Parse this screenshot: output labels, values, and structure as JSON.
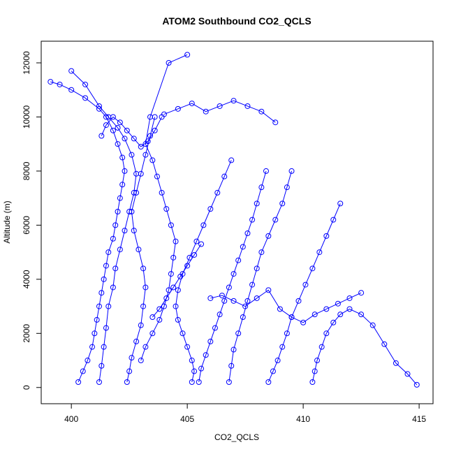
{
  "chart_data": {
    "type": "scatter",
    "title": "ATOM2 Southbound CO2_QCLS",
    "xlabel": "CO2_QCLS",
    "ylabel": "Altitude (m)",
    "xlim": [
      398.7,
      415.6
    ],
    "ylim": [
      -600,
      12800
    ],
    "x_ticks": [
      400,
      405,
      410,
      415
    ],
    "y_ticks": [
      0,
      2000,
      4000,
      6000,
      8000,
      10000,
      12000
    ],
    "grid": false,
    "legend": "none",
    "point_style": "open-circle",
    "connect_points": true,
    "color": "#0000ff",
    "series": [
      {
        "x": [
          400.3,
          400.5,
          400.7,
          400.9,
          401.0,
          401.1,
          401.2,
          401.3,
          401.4,
          401.5,
          401.6,
          401.8,
          401.9,
          402.0,
          402.1,
          402.2,
          402.3,
          402.2,
          402.0,
          401.8,
          401.5,
          401.2,
          400.6,
          400.0,
          399.5,
          399.1
        ],
        "y": [
          200,
          600,
          1000,
          1500,
          2000,
          2500,
          3000,
          3500,
          4000,
          4500,
          5000,
          5500,
          6000,
          6500,
          7000,
          7500,
          8000,
          8500,
          9000,
          9500,
          10000,
          10300,
          10700,
          11000,
          11200,
          11300
        ]
      },
      {
        "x": [
          401.2,
          401.3,
          401.4,
          401.5,
          401.6,
          401.8,
          401.9,
          402.1,
          402.3,
          402.5,
          402.7,
          402.8,
          402.6,
          402.3,
          402.0,
          401.6,
          401.2,
          400.6,
          400.0
        ],
        "y": [
          200,
          800,
          1500,
          2200,
          3000,
          3700,
          4400,
          5100,
          5800,
          6500,
          7200,
          7900,
          8600,
          9200,
          9600,
          10000,
          10400,
          11200,
          11700
        ]
      },
      {
        "x": [
          402.4,
          402.5,
          402.6,
          402.8,
          403.0,
          403.1,
          403.2,
          403.1,
          402.9,
          402.7,
          402.6,
          402.8,
          403.0,
          403.2,
          403.4,
          403.6
        ],
        "y": [
          200,
          600,
          1100,
          1700,
          2300,
          3000,
          3700,
          4400,
          5100,
          5800,
          6500,
          7200,
          7900,
          8600,
          9300,
          10000
        ]
      },
      {
        "x": [
          403.0,
          403.2,
          403.5,
          403.8,
          404.0,
          404.2,
          404.3,
          404.4,
          404.5,
          404.3,
          404.1,
          403.9,
          403.7,
          403.5,
          403.2,
          403.4,
          404.2,
          405.0
        ],
        "y": [
          1000,
          1500,
          2000,
          2500,
          3000,
          3600,
          4200,
          4800,
          5400,
          6000,
          6600,
          7200,
          7800,
          8400,
          9000,
          10000,
          12000,
          12300
        ]
      },
      {
        "x": [
          405.2,
          405.3,
          405.2,
          405.0,
          404.8,
          404.6,
          404.5,
          404.6,
          404.8,
          405.1,
          405.4,
          405.7,
          406.0,
          406.3,
          406.6,
          406.9
        ],
        "y": [
          200,
          600,
          1000,
          1500,
          2000,
          2500,
          3000,
          3600,
          4200,
          4800,
          5400,
          6000,
          6600,
          7200,
          7800,
          8400
        ]
      },
      {
        "x": [
          405.5,
          405.6,
          405.8,
          406.0,
          406.2,
          406.4,
          406.6,
          406.8,
          407.0,
          407.2,
          407.4,
          407.6,
          407.8,
          408.0,
          408.2,
          408.4
        ],
        "y": [
          200,
          700,
          1200,
          1700,
          2200,
          2700,
          3200,
          3700,
          4200,
          4700,
          5200,
          5700,
          6200,
          6800,
          7400,
          8000
        ]
      },
      {
        "x": [
          406.8,
          406.9,
          407.0,
          407.2,
          407.4,
          407.6,
          407.8,
          408.0,
          408.2,
          408.5,
          408.8,
          409.1,
          409.3,
          409.5
        ],
        "y": [
          200,
          800,
          1400,
          2000,
          2600,
          3200,
          3800,
          4400,
          5000,
          5600,
          6200,
          6800,
          7400,
          8000
        ]
      },
      {
        "x": [
          408.5,
          408.7,
          408.9,
          409.1,
          409.3,
          409.5,
          409.8,
          410.1,
          410.4,
          410.7,
          411.0,
          411.3,
          411.6
        ],
        "y": [
          200,
          600,
          1000,
          1500,
          2000,
          2600,
          3200,
          3800,
          4400,
          5000,
          5600,
          6200,
          6800
        ]
      },
      {
        "x": [
          410.4,
          410.5,
          410.6,
          410.8,
          411.0,
          411.3,
          411.6,
          412.0,
          412.5,
          413.0,
          413.5,
          414.0,
          414.5,
          414.9
        ],
        "y": [
          200,
          600,
          1000,
          1500,
          2000,
          2400,
          2700,
          2900,
          2700,
          2300,
          1600,
          900,
          500,
          100
        ]
      },
      {
        "x": [
          406.0,
          406.5,
          407.0,
          407.5,
          408.0,
          408.5,
          409.0,
          409.5,
          410.0,
          410.5,
          411.0,
          411.5,
          412.0,
          412.5
        ],
        "y": [
          3300,
          3400,
          3200,
          3000,
          3300,
          3600,
          2900,
          2600,
          2400,
          2700,
          2900,
          3100,
          3300,
          3500
        ]
      },
      {
        "x": [
          404.0,
          404.6,
          405.2,
          405.8,
          406.4,
          407.0,
          407.6,
          408.2,
          408.8
        ],
        "y": [
          10100,
          10300,
          10500,
          10200,
          10400,
          10600,
          10400,
          10200,
          9800
        ]
      },
      {
        "x": [
          401.3,
          401.5,
          401.8,
          402.1,
          402.4,
          402.7,
          403.0,
          403.3,
          403.6,
          403.9
        ],
        "y": [
          9300,
          9700,
          10000,
          9800,
          9500,
          9200,
          8900,
          9100,
          9500,
          10000
        ]
      },
      {
        "x": [
          403.5,
          403.8,
          404.1,
          404.4,
          404.7,
          405.0,
          405.3,
          405.6
        ],
        "y": [
          2600,
          2900,
          3300,
          3700,
          4100,
          4500,
          4900,
          5300
        ]
      }
    ]
  }
}
